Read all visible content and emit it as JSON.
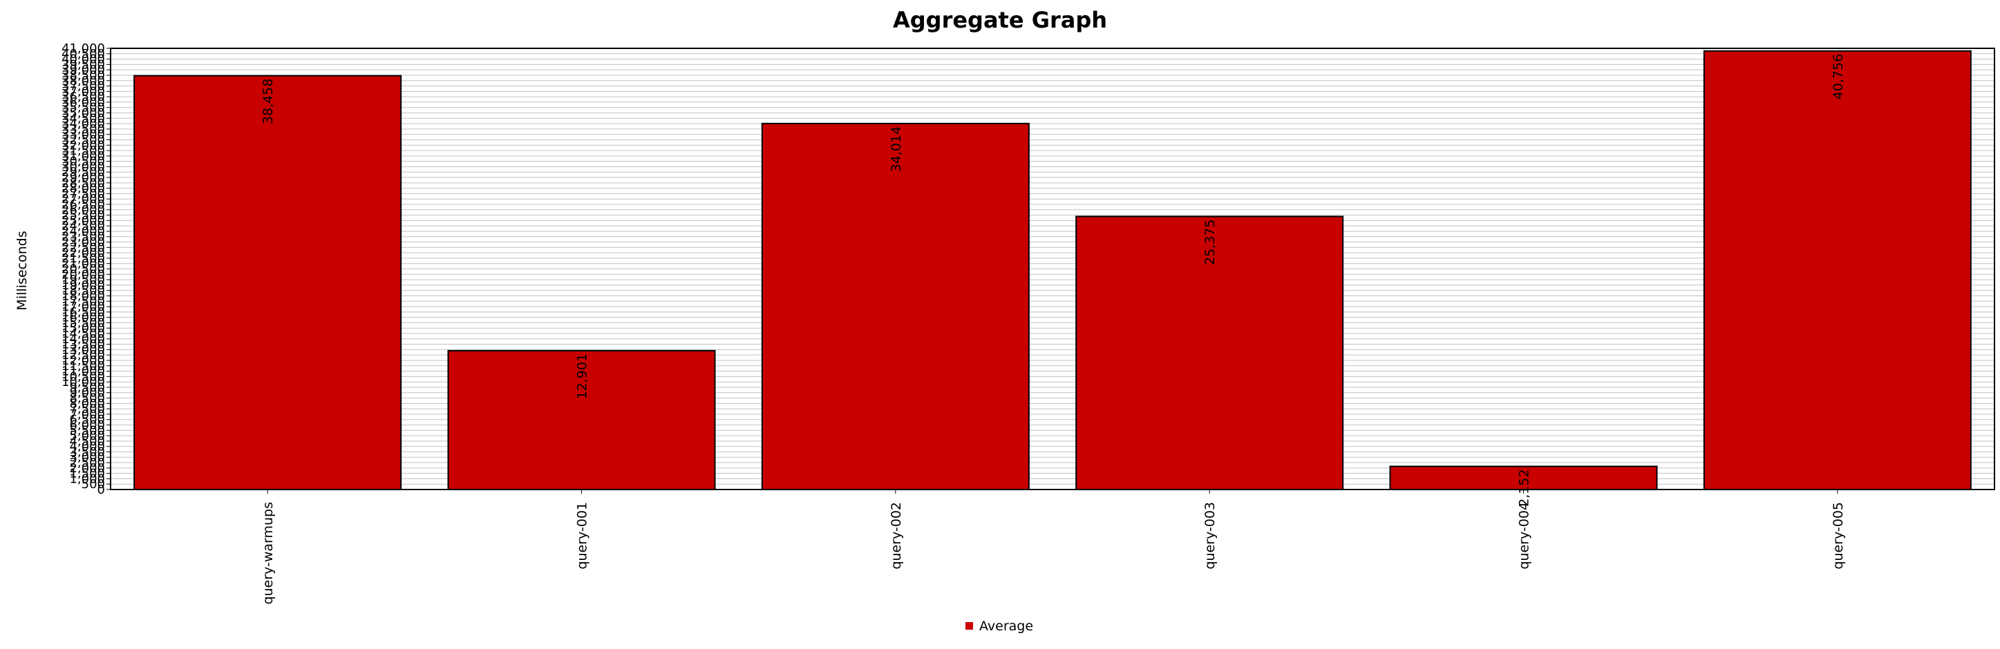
{
  "chart_data": {
    "type": "bar",
    "title": "Aggregate Graph",
    "xlabel": "",
    "ylabel": "Milliseconds",
    "categories": [
      "query-warmups",
      "query-001",
      "query-002",
      "query-003",
      "query-004",
      "query-005"
    ],
    "series": [
      {
        "name": "Average",
        "values": [
          38458,
          12901,
          34014,
          25375,
          2152,
          40756
        ],
        "value_labels": [
          "38,458",
          "12,901",
          "34,014",
          "25,375",
          "2,152",
          "40,756"
        ],
        "color": "#c80000"
      }
    ],
    "ylim": [
      0,
      41000
    ],
    "y_tick_step": 500,
    "y_tick_labels_shown": [
      "0",
      "500",
      "41,000"
    ],
    "grid": true,
    "legend": "bottom-center",
    "colors": {
      "bar": "#c80000",
      "plot_background": "#ffffff",
      "gridline": "#c0c0c0"
    }
  }
}
